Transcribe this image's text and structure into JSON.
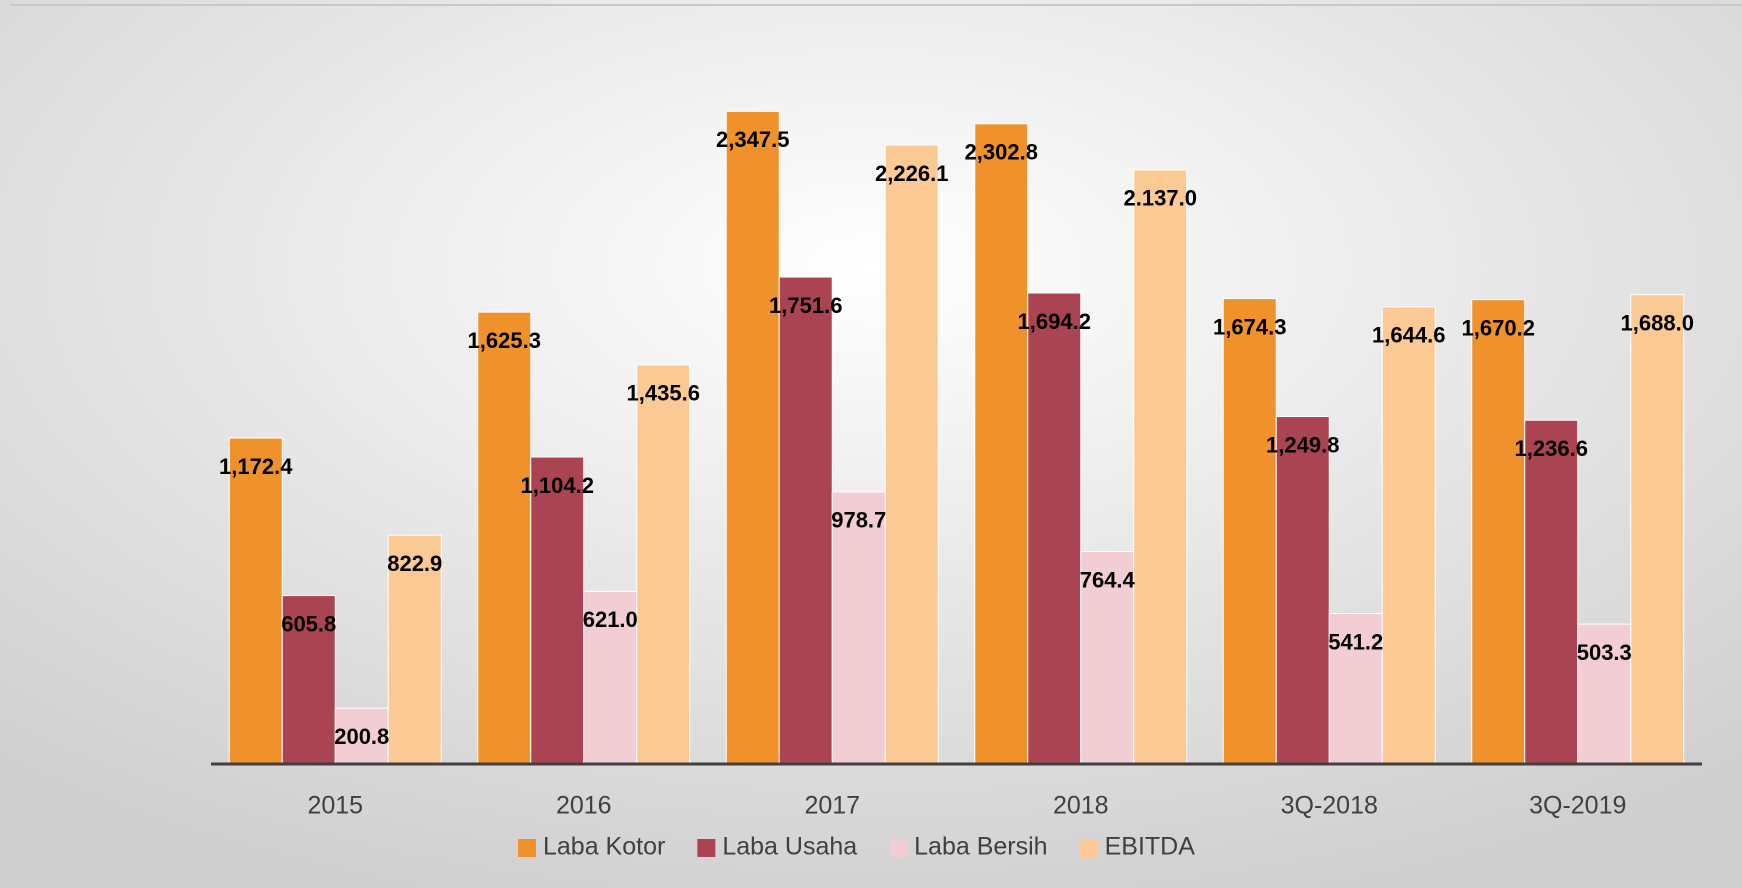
{
  "chart_data": {
    "type": "bar",
    "categories": [
      "2015",
      "2016",
      "2017",
      "2018",
      "3Q-2018",
      "3Q-2019"
    ],
    "ylim": [
      0,
      2500
    ],
    "legend": "bottom",
    "series": [
      {
        "name": "Laba Kotor",
        "color": "#f0922c",
        "values": [
          1172.4,
          1625.3,
          2347.5,
          2302.8,
          1674.3,
          1670.2
        ],
        "value_labels": [
          "1,172.4",
          "1,625.3",
          "2,347.5",
          "2,302.8",
          "1,674.3",
          "1,670.2"
        ]
      },
      {
        "name": "Laba Usaha",
        "color": "#ab4452",
        "values": [
          605.8,
          1104.2,
          1751.6,
          1694.2,
          1249.8,
          1236.6
        ],
        "value_labels": [
          "605.8",
          "1,104.2",
          "1,751.6",
          "1,694.2",
          "1,249.8",
          "1,236.6"
        ]
      },
      {
        "name": "Laba Bersih",
        "color": "#f2cdd3",
        "values": [
          200.8,
          621.0,
          978.7,
          764.4,
          541.2,
          503.3
        ],
        "value_labels": [
          "200.8",
          "621.0",
          "978.7",
          "764.4",
          "541.2",
          "503.3"
        ]
      },
      {
        "name": "EBITDA",
        "color": "#fbc994",
        "values": [
          822.9,
          1435.6,
          2226.1,
          2137.0,
          1644.6,
          1688.0
        ],
        "value_labels": [
          "822.9",
          "1,435.6",
          "2,226.1",
          "2.137.0",
          "1,644.6",
          "1,688.0"
        ]
      }
    ]
  }
}
